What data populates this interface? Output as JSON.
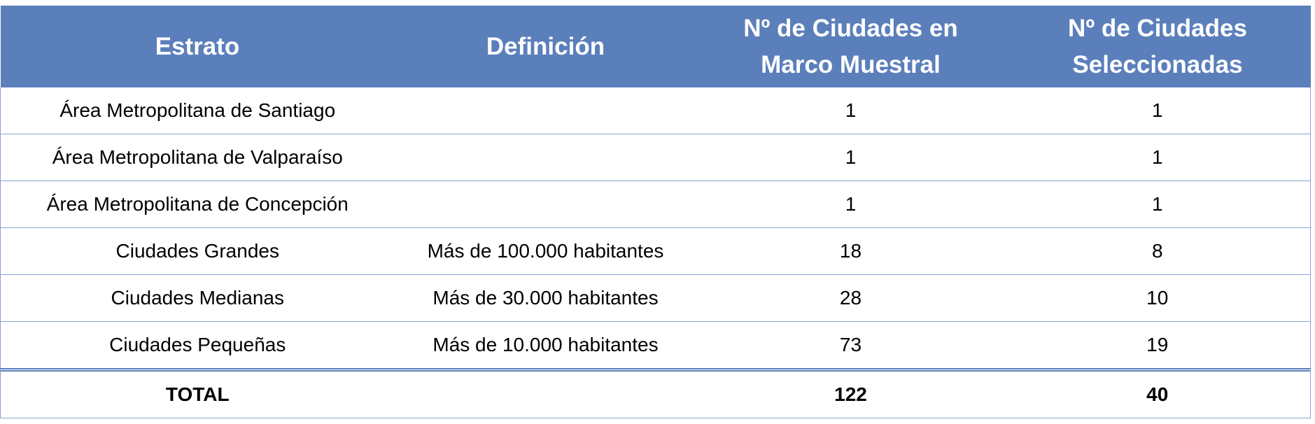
{
  "headers": [
    "Estrato",
    "Definición",
    "Nº de Ciudades en Marco Muestral",
    "Nº de Ciudades Seleccionadas"
  ],
  "rows": [
    {
      "estrato": "Área Metropolitana de Santiago",
      "definicion": "",
      "marco": "1",
      "seleccionadas": "1"
    },
    {
      "estrato": "Área Metropolitana de Valparaíso",
      "definicion": "",
      "marco": "1",
      "seleccionadas": "1"
    },
    {
      "estrato": "Área Metropolitana de Concepción",
      "definicion": "",
      "marco": "1",
      "seleccionadas": "1"
    },
    {
      "estrato": "Ciudades Grandes",
      "definicion": "Más de 100.000 habitantes",
      "marco": "18",
      "seleccionadas": "8"
    },
    {
      "estrato": "Ciudades Medianas",
      "definicion": "Más de 30.000 habitantes",
      "marco": "28",
      "seleccionadas": "10"
    },
    {
      "estrato": "Ciudades Pequeñas",
      "definicion": "Más de 10.000 habitantes",
      "marco": "73",
      "seleccionadas": "19"
    }
  ],
  "total": {
    "label": "TOTAL",
    "definicion": "",
    "marco": "122",
    "seleccionadas": "40"
  },
  "colors": {
    "header_bg": "#5b7fbb",
    "header_text": "#ffffff",
    "grid_line": "#8aa4cf"
  }
}
